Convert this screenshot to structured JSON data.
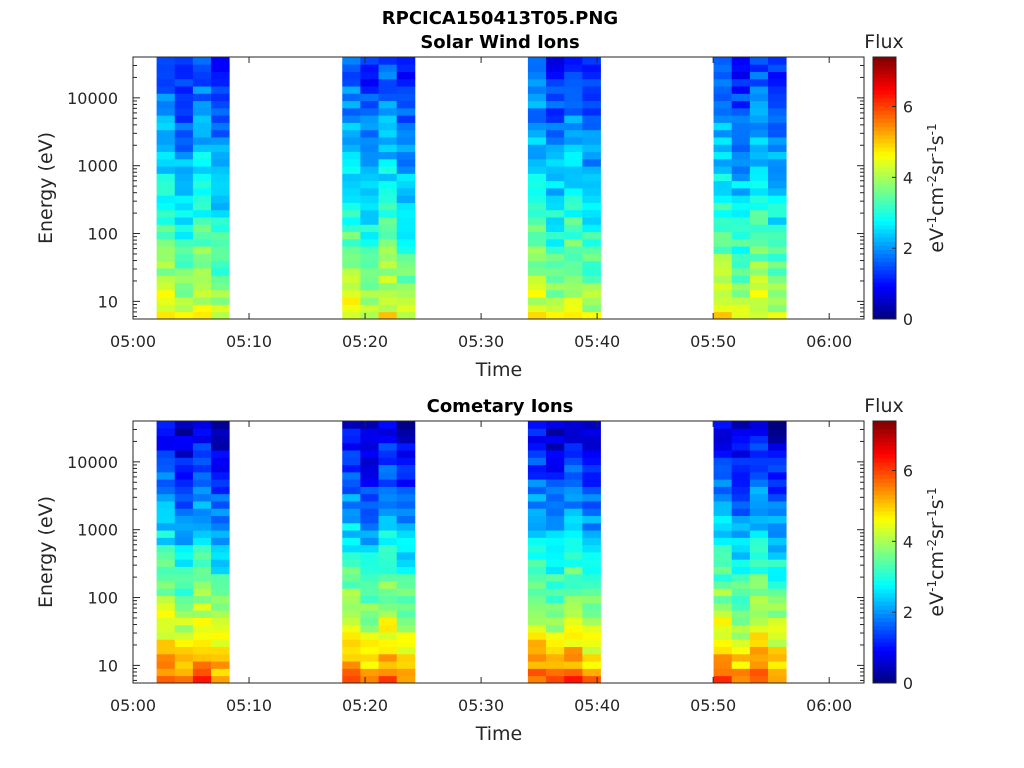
{
  "figure": {
    "title": "RPCICA150413T05.PNG"
  },
  "colorbar": {
    "title": "Flux",
    "unit_label": "eV-1cm-2sr-1s-1",
    "range": [
      0,
      7.4
    ],
    "ticks": [
      "0",
      "2",
      "4",
      "6"
    ],
    "colormap": [
      "#00007f",
      "#0000ff",
      "#007fff",
      "#00ffff",
      "#7fff7f",
      "#ffff00",
      "#ff7f00",
      "#ff0000",
      "#7f0000"
    ]
  },
  "chart_data": [
    {
      "type": "heatmap",
      "title": "Solar Wind Ions",
      "xlabel": "Time",
      "ylabel": "Energy (eV)",
      "y_scale": "log",
      "ylim": [
        5.5,
        40000
      ],
      "xlim": [
        "05:00",
        "06:03"
      ],
      "x_ticks": [
        "05:00",
        "05:10",
        "05:20",
        "05:30",
        "05:40",
        "05:50",
        "06:00"
      ],
      "y_ticks": [
        "10",
        "100",
        "1000",
        "10000"
      ],
      "intervals": [
        [
          "05:01",
          "05:07"
        ],
        [
          "05:17",
          "05:23"
        ],
        [
          "05:33",
          "05:39"
        ],
        [
          "05:49",
          "05:55"
        ]
      ],
      "flux_profile": {
        "low_energy_flux": 4.5,
        "high_energy_flux": 1.3
      }
    },
    {
      "type": "heatmap",
      "title": "Cometary Ions",
      "xlabel": "Time",
      "ylabel": "Energy (eV)",
      "y_scale": "log",
      "ylim": [
        5.5,
        40000
      ],
      "xlim": [
        "05:00",
        "06:03"
      ],
      "x_ticks": [
        "05:00",
        "05:10",
        "05:20",
        "05:30",
        "05:40",
        "05:50",
        "06:00"
      ],
      "y_ticks": [
        "10",
        "100",
        "1000",
        "10000"
      ],
      "intervals": [
        [
          "05:01",
          "05:07"
        ],
        [
          "05:17",
          "05:23"
        ],
        [
          "05:33",
          "05:39"
        ],
        [
          "05:49",
          "05:55"
        ]
      ],
      "flux_profile": {
        "low_energy_flux": 5.8,
        "high_energy_flux": 0.6
      }
    }
  ]
}
